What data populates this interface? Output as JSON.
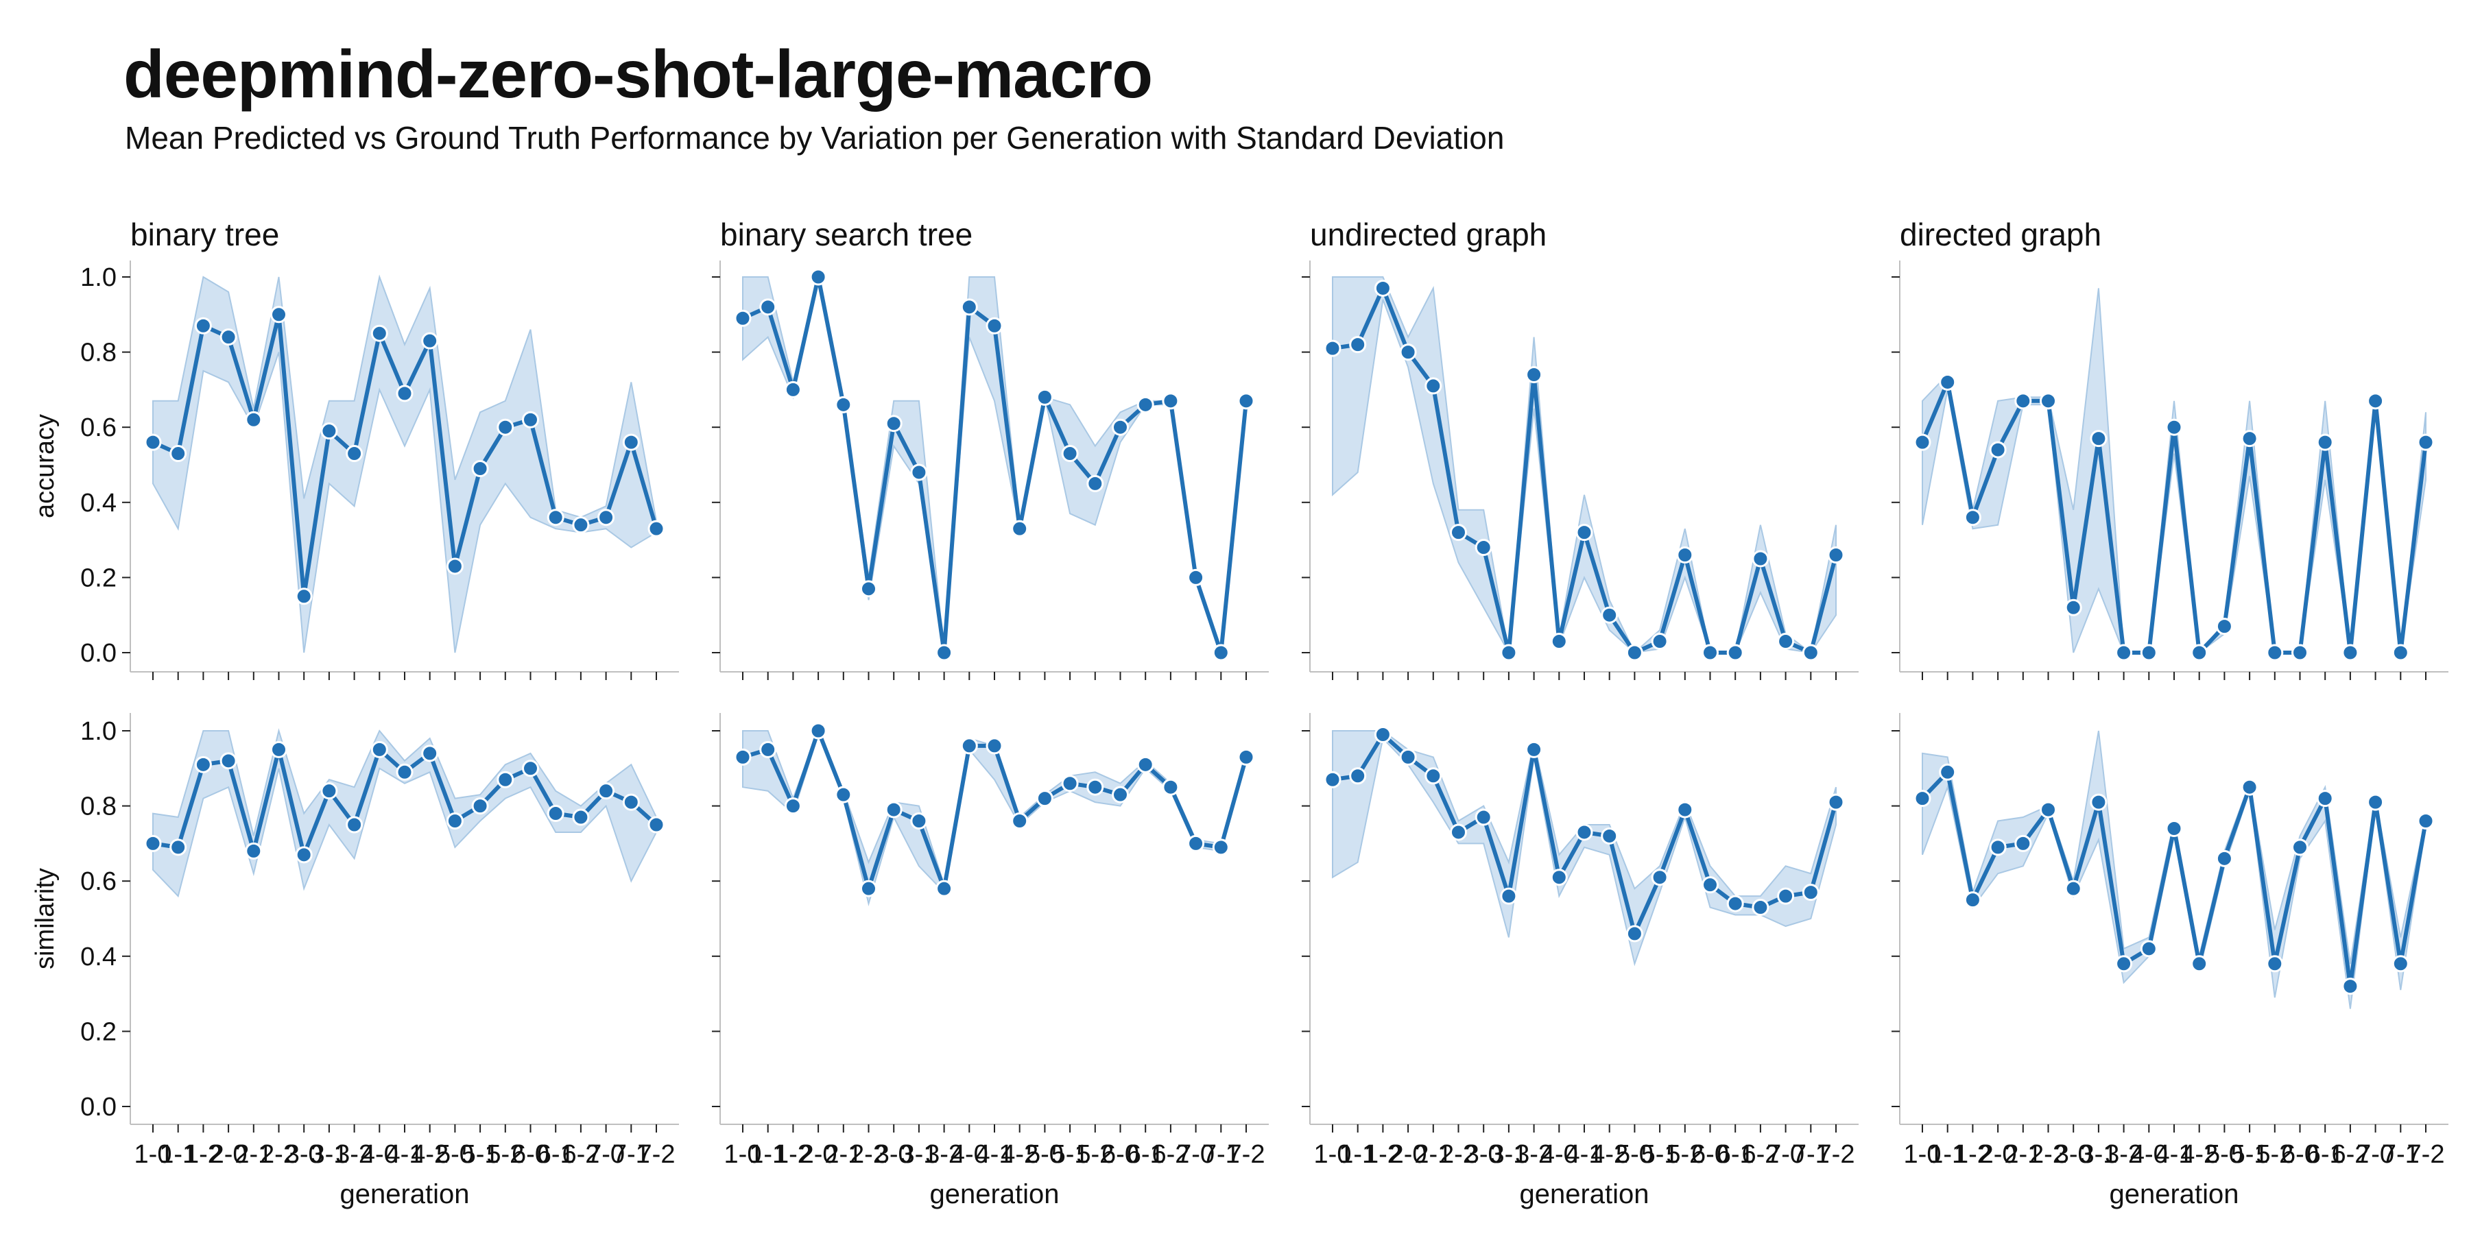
{
  "title": "deepmind-zero-shot-large-macro",
  "subtitle": "Mean Predicted vs Ground Truth Performance by Variation per Generation with Standard Deviation",
  "colors": {
    "line": "#2271b5",
    "band": "#c6dbef",
    "band_edge": "#a9c8e4",
    "axis": "#bfbfbf",
    "text": "#111111"
  },
  "chart_data": {
    "type": "line",
    "layout": "facet-grid",
    "xlabel": "generation",
    "row_labels": [
      "accuracy",
      "similarity"
    ],
    "col_labels": [
      "binary tree",
      "binary search tree",
      "undirected graph",
      "directed graph"
    ],
    "x": [
      "1-0",
      "1-1",
      "1-2",
      "2-0",
      "2-1",
      "2-2",
      "3-0",
      "3-1",
      "3-2",
      "4-0",
      "4-1",
      "4-2",
      "5-0",
      "5-1",
      "5-2",
      "6-0",
      "6-1",
      "6-2",
      "7-0",
      "7-1",
      "7-2"
    ],
    "ylim": [
      0,
      1
    ],
    "yticks": [
      0.0,
      0.2,
      0.4,
      0.6,
      0.8,
      1.0
    ],
    "ytick_labels": [
      "0.0",
      "0.2",
      "0.4",
      "0.6",
      "0.8",
      "1.0"
    ],
    "grid": false,
    "band": "standard deviation",
    "panels": [
      {
        "row": "accuracy",
        "col": "binary tree",
        "mean": [
          0.56,
          0.53,
          0.87,
          0.84,
          0.62,
          0.9,
          0.15,
          0.59,
          0.53,
          0.85,
          0.69,
          0.83,
          0.23,
          0.49,
          0.6,
          0.62,
          0.36,
          0.34,
          0.36,
          0.56,
          0.33
        ],
        "lower": [
          0.45,
          0.33,
          0.75,
          0.72,
          0.6,
          0.8,
          0.0,
          0.45,
          0.39,
          0.7,
          0.55,
          0.7,
          0.0,
          0.34,
          0.45,
          0.36,
          0.33,
          0.32,
          0.33,
          0.28,
          0.32
        ],
        "upper": [
          0.67,
          0.67,
          1.0,
          0.96,
          0.65,
          1.0,
          0.41,
          0.67,
          0.67,
          1.0,
          0.82,
          0.97,
          0.46,
          0.64,
          0.67,
          0.86,
          0.38,
          0.36,
          0.39,
          0.72,
          0.35
        ]
      },
      {
        "row": "accuracy",
        "col": "binary search tree",
        "mean": [
          0.89,
          0.92,
          0.7,
          1.0,
          0.66,
          0.17,
          0.61,
          0.48,
          0.0,
          0.92,
          0.87,
          0.33,
          0.68,
          0.53,
          0.45,
          0.6,
          0.66,
          0.67,
          0.2,
          0.0,
          0.67
        ],
        "lower": [
          0.78,
          0.84,
          0.68,
          0.99,
          0.65,
          0.14,
          0.55,
          0.45,
          0.0,
          0.84,
          0.67,
          0.33,
          0.68,
          0.37,
          0.34,
          0.56,
          0.66,
          0.66,
          0.19,
          0.0,
          0.66
        ],
        "upper": [
          1.0,
          1.0,
          0.72,
          1.0,
          0.67,
          0.2,
          0.67,
          0.67,
          0.0,
          1.0,
          1.0,
          0.34,
          0.68,
          0.66,
          0.55,
          0.64,
          0.67,
          0.67,
          0.21,
          0.0,
          0.67
        ]
      },
      {
        "row": "accuracy",
        "col": "undirected graph",
        "mean": [
          0.81,
          0.82,
          0.97,
          0.8,
          0.71,
          0.32,
          0.28,
          0.0,
          0.74,
          0.03,
          0.32,
          0.1,
          0.0,
          0.03,
          0.26,
          0.0,
          0.0,
          0.25,
          0.03,
          0.0,
          0.26
        ],
        "lower": [
          0.42,
          0.48,
          0.94,
          0.76,
          0.45,
          0.24,
          0.12,
          0.0,
          0.65,
          0.02,
          0.2,
          0.06,
          0.0,
          0.01,
          0.2,
          0.0,
          0.0,
          0.16,
          0.01,
          0.0,
          0.1
        ],
        "upper": [
          1.0,
          1.0,
          1.0,
          0.84,
          0.97,
          0.38,
          0.38,
          0.0,
          0.84,
          0.04,
          0.42,
          0.14,
          0.0,
          0.06,
          0.33,
          0.0,
          0.0,
          0.34,
          0.05,
          0.0,
          0.34
        ]
      },
      {
        "row": "accuracy",
        "col": "directed graph",
        "mean": [
          0.56,
          0.72,
          0.36,
          0.54,
          0.67,
          0.67,
          0.12,
          0.57,
          0.0,
          0.0,
          0.6,
          0.0,
          0.07,
          0.57,
          0.0,
          0.0,
          0.56,
          0.0,
          0.67,
          0.0,
          0.56
        ],
        "lower": [
          0.34,
          0.7,
          0.33,
          0.34,
          0.66,
          0.66,
          0.0,
          0.17,
          0.0,
          0.0,
          0.53,
          0.0,
          0.05,
          0.47,
          0.0,
          0.0,
          0.46,
          0.0,
          0.66,
          0.0,
          0.46
        ],
        "upper": [
          0.67,
          0.74,
          0.38,
          0.67,
          0.68,
          0.68,
          0.38,
          0.97,
          0.0,
          0.0,
          0.67,
          0.0,
          0.08,
          0.67,
          0.0,
          0.0,
          0.67,
          0.0,
          0.68,
          0.0,
          0.64
        ]
      },
      {
        "row": "similarity",
        "col": "binary tree",
        "mean": [
          0.7,
          0.69,
          0.91,
          0.92,
          0.68,
          0.95,
          0.67,
          0.84,
          0.75,
          0.95,
          0.89,
          0.94,
          0.76,
          0.8,
          0.87,
          0.9,
          0.78,
          0.77,
          0.84,
          0.81,
          0.75
        ],
        "lower": [
          0.63,
          0.56,
          0.82,
          0.85,
          0.62,
          0.9,
          0.58,
          0.75,
          0.66,
          0.9,
          0.86,
          0.89,
          0.69,
          0.76,
          0.82,
          0.85,
          0.73,
          0.73,
          0.8,
          0.6,
          0.73
        ],
        "upper": [
          0.78,
          0.77,
          1.0,
          1.0,
          0.72,
          1.0,
          0.78,
          0.87,
          0.85,
          1.0,
          0.92,
          0.98,
          0.82,
          0.83,
          0.91,
          0.94,
          0.84,
          0.8,
          0.86,
          0.91,
          0.77
        ]
      },
      {
        "row": "similarity",
        "col": "binary search tree",
        "mean": [
          0.93,
          0.95,
          0.8,
          1.0,
          0.83,
          0.58,
          0.79,
          0.76,
          0.58,
          0.96,
          0.96,
          0.76,
          0.82,
          0.86,
          0.85,
          0.83,
          0.91,
          0.85,
          0.7,
          0.69,
          0.93
        ],
        "lower": [
          0.85,
          0.84,
          0.78,
          0.99,
          0.82,
          0.54,
          0.77,
          0.64,
          0.57,
          0.95,
          0.87,
          0.75,
          0.81,
          0.84,
          0.81,
          0.8,
          0.9,
          0.84,
          0.69,
          0.68,
          0.92
        ],
        "upper": [
          1.0,
          1.0,
          0.82,
          1.0,
          0.84,
          0.65,
          0.81,
          0.8,
          0.59,
          0.98,
          0.96,
          0.77,
          0.83,
          0.88,
          0.89,
          0.86,
          0.92,
          0.86,
          0.71,
          0.7,
          0.94
        ]
      },
      {
        "row": "similarity",
        "col": "undirected graph",
        "mean": [
          0.87,
          0.88,
          0.99,
          0.93,
          0.88,
          0.73,
          0.77,
          0.56,
          0.95,
          0.61,
          0.73,
          0.72,
          0.46,
          0.61,
          0.79,
          0.59,
          0.54,
          0.53,
          0.56,
          0.57,
          0.81
        ],
        "lower": [
          0.61,
          0.65,
          0.98,
          0.91,
          0.81,
          0.7,
          0.7,
          0.45,
          0.93,
          0.56,
          0.69,
          0.67,
          0.38,
          0.57,
          0.77,
          0.53,
          0.51,
          0.51,
          0.48,
          0.5,
          0.75
        ],
        "upper": [
          1.0,
          1.0,
          1.0,
          0.95,
          0.93,
          0.76,
          0.8,
          0.65,
          0.97,
          0.67,
          0.75,
          0.75,
          0.58,
          0.64,
          0.81,
          0.64,
          0.56,
          0.56,
          0.64,
          0.62,
          0.85
        ]
      },
      {
        "row": "similarity",
        "col": "directed graph",
        "mean": [
          0.82,
          0.89,
          0.55,
          0.69,
          0.7,
          0.79,
          0.58,
          0.81,
          0.38,
          0.42,
          0.74,
          0.38,
          0.66,
          0.85,
          0.38,
          0.69,
          0.82,
          0.32,
          0.81,
          0.38,
          0.76
        ],
        "lower": [
          0.67,
          0.85,
          0.53,
          0.62,
          0.64,
          0.78,
          0.56,
          0.71,
          0.33,
          0.4,
          0.72,
          0.36,
          0.64,
          0.84,
          0.29,
          0.66,
          0.76,
          0.26,
          0.8,
          0.31,
          0.75
        ],
        "upper": [
          0.94,
          0.93,
          0.57,
          0.76,
          0.77,
          0.8,
          0.6,
          1.0,
          0.42,
          0.45,
          0.76,
          0.4,
          0.68,
          0.86,
          0.47,
          0.72,
          0.85,
          0.38,
          0.82,
          0.45,
          0.77
        ]
      }
    ]
  }
}
